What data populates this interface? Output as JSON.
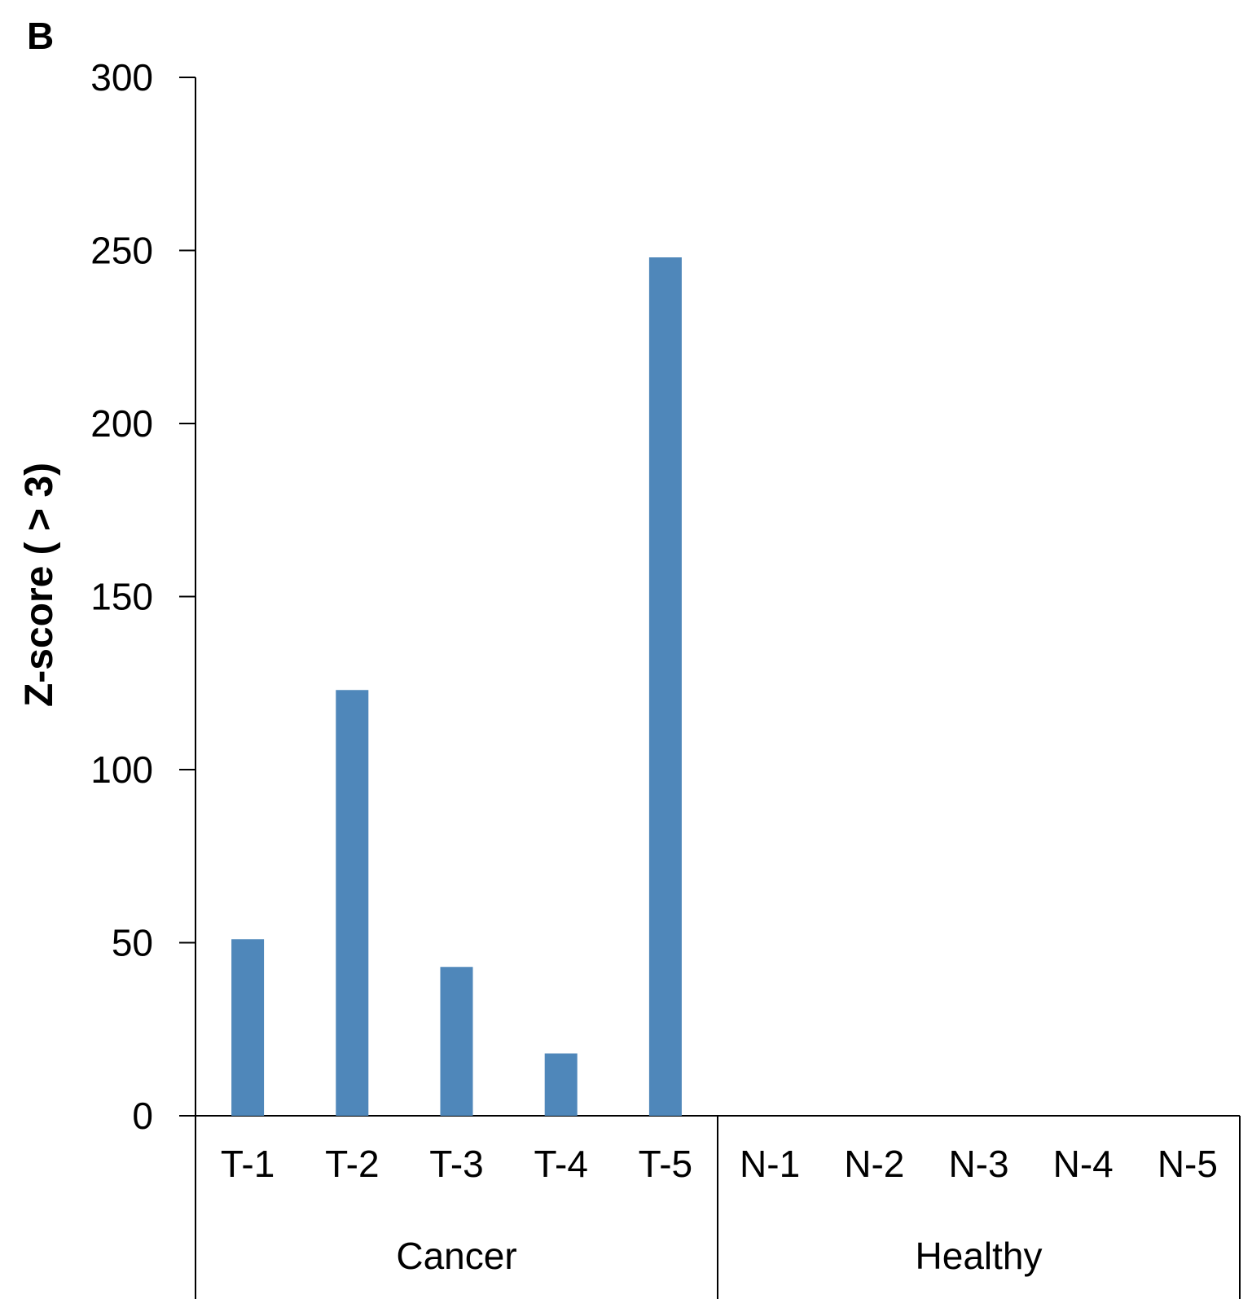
{
  "panel_label": "B",
  "colors": {
    "bar": "#4f87ba",
    "axis": "#000000"
  },
  "chart_data": {
    "type": "bar",
    "ylabel": "Z-score ( > 3)",
    "ylim": [
      0,
      300
    ],
    "yticks": [
      "0",
      "50",
      "100",
      "150",
      "200",
      "250",
      "300"
    ],
    "categories": [
      "T-1",
      "T-2",
      "T-3",
      "T-4",
      "T-5",
      "N-1",
      "N-2",
      "N-3",
      "N-4",
      "N-5"
    ],
    "values": [
      51,
      123,
      43,
      18,
      248,
      0,
      0,
      0,
      0,
      0
    ],
    "groups": [
      {
        "label": "Cancer",
        "categories": [
          "T-1",
          "T-2",
          "T-3",
          "T-4",
          "T-5"
        ]
      },
      {
        "label": "Healthy",
        "categories": [
          "N-1",
          "N-2",
          "N-3",
          "N-4",
          "N-5"
        ]
      }
    ],
    "grid": false,
    "legend": "none"
  }
}
